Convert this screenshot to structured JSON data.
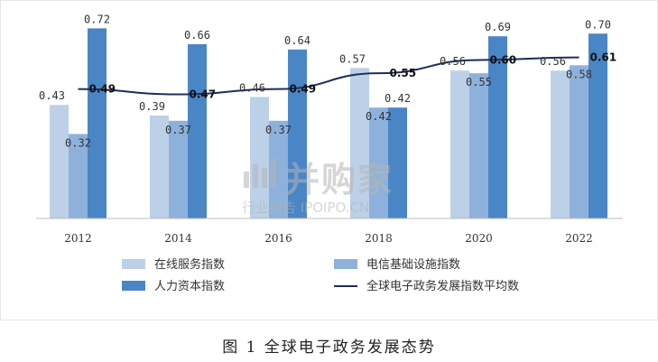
{
  "chart_data": {
    "type": "bar",
    "categories": [
      "2012",
      "2014",
      "2016",
      "2018",
      "2020",
      "2022"
    ],
    "series": [
      {
        "name": "在线服务指数",
        "values": [
          0.43,
          0.39,
          0.46,
          0.57,
          0.56,
          0.56
        ],
        "color": "#bcd0e8"
      },
      {
        "name": "电信基础设施指数",
        "values": [
          0.32,
          0.37,
          0.37,
          0.42,
          0.55,
          0.58
        ],
        "color": "#8eb1dc"
      },
      {
        "name": "人力资本指数",
        "values": [
          0.72,
          0.66,
          0.64,
          0.42,
          0.69,
          0.7
        ],
        "color": "#4a86c6"
      }
    ],
    "line_series": {
      "name": "全球电子政务发展指数平均数",
      "values": [
        0.49,
        0.47,
        0.49,
        0.55,
        0.6,
        0.61
      ],
      "color": "#1f2d5c"
    },
    "data_labels": {
      "online": [
        "0.43",
        "0.39",
        "0.46",
        "0.57",
        "0.56",
        "0.56"
      ],
      "telecom": [
        "0.32",
        "0.37",
        "0.37",
        "0.42",
        "0.55",
        "0.58"
      ],
      "human": [
        "0.72",
        "0.66",
        "0.64",
        "0.42",
        "0.69",
        "0.70"
      ],
      "avg": [
        "0.49",
        "0.47",
        "0.49",
        "0.55",
        "0.60",
        "0.61"
      ]
    },
    "ylim": [
      0,
      0.8
    ],
    "grid": false,
    "legend_placement": "bottom"
  },
  "watermark": {
    "brand": "并购家",
    "sub": "行业报告 IPOIPO.CN"
  },
  "caption": "图 1 全球电子政务发展态势"
}
